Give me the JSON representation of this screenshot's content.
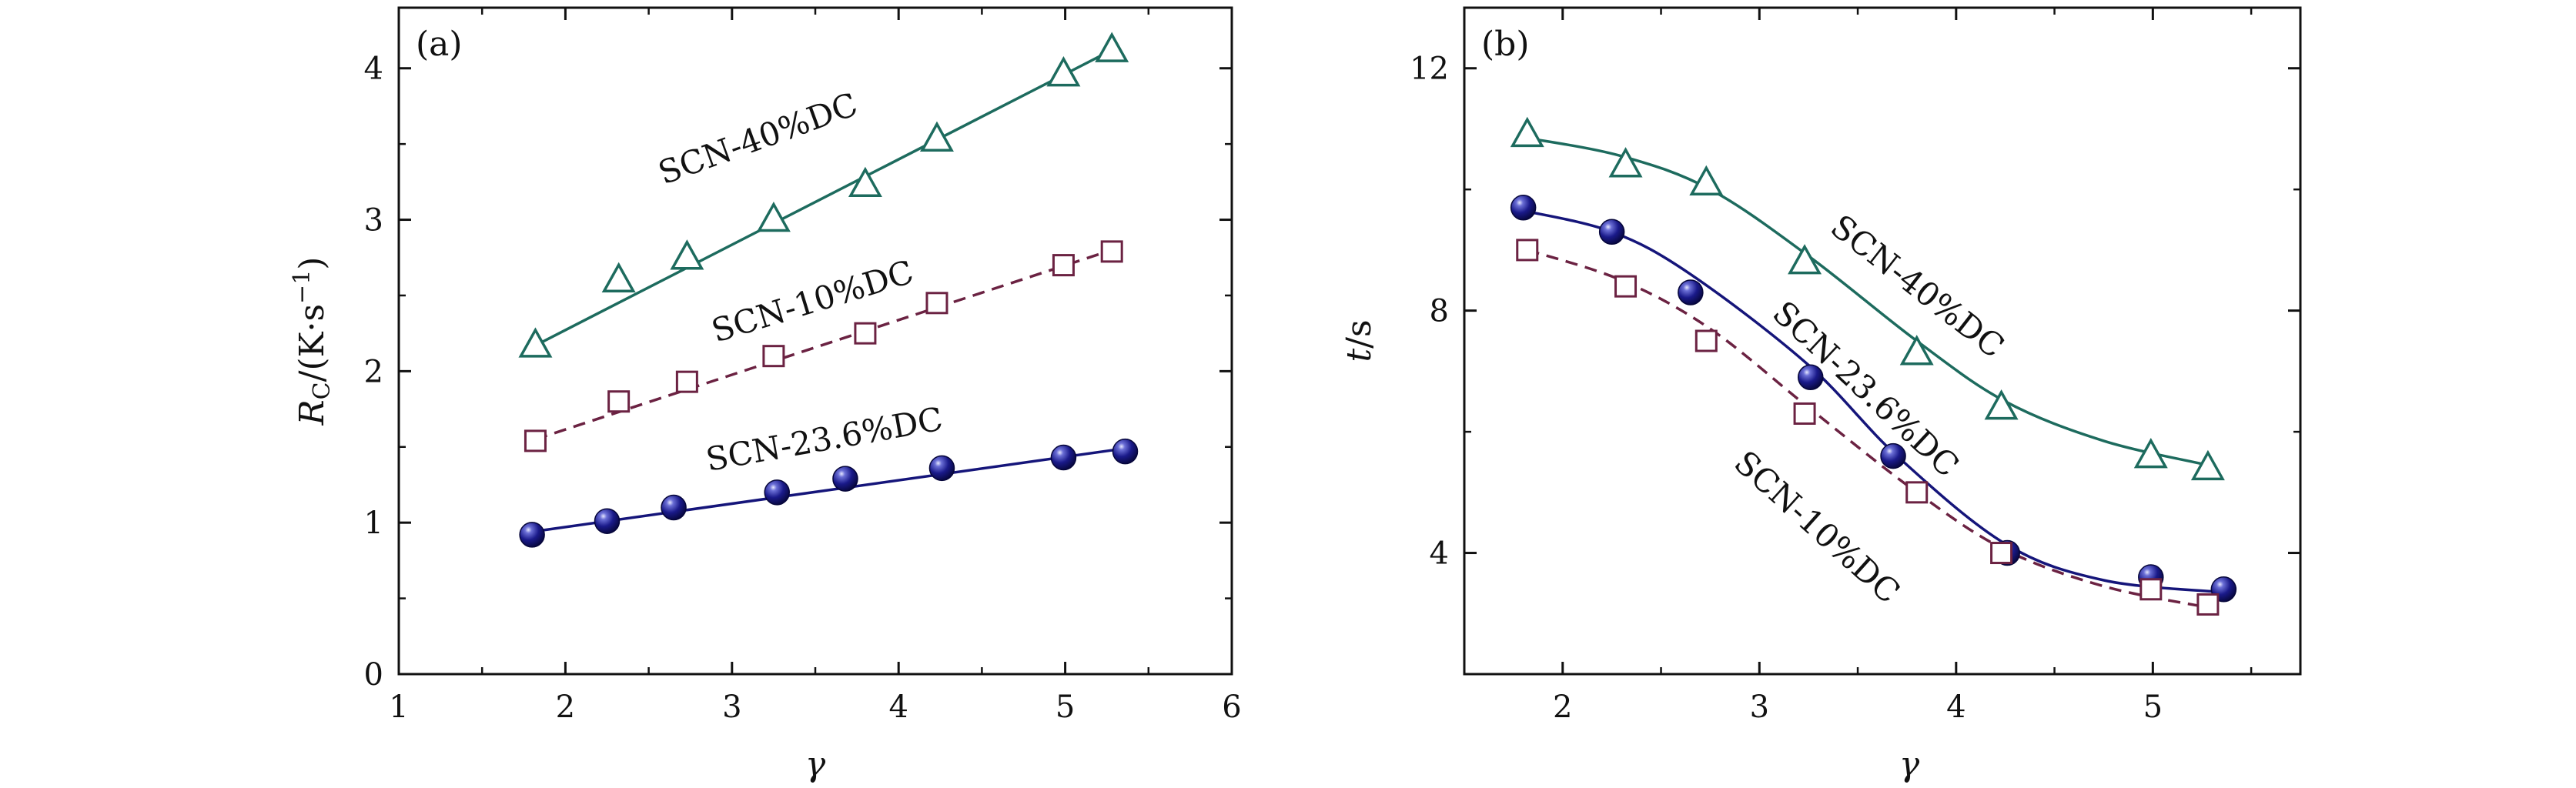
{
  "chart_data": [
    {
      "type": "scatter",
      "panel_label": "(a)",
      "xlabel": "γ",
      "ylabel": "R",
      "ylabel_sub": "C",
      "ylabel_units": "/(K·s",
      "ylabel_sup": "−1",
      "ylabel_tail": ")",
      "xlim": [
        1,
        6
      ],
      "ylim": [
        0,
        4.4
      ],
      "xticks": [
        1,
        2,
        3,
        4,
        5,
        6
      ],
      "yticks": [
        0,
        1,
        2,
        3,
        4
      ],
      "series": [
        {
          "name": "SCN-40%DC",
          "marker": "triangle",
          "color": "#1d6b5e",
          "line": "solid",
          "x": [
            1.82,
            2.32,
            2.73,
            3.25,
            3.8,
            4.23,
            4.99,
            5.28
          ],
          "y": [
            2.17,
            2.6,
            2.75,
            3.0,
            3.23,
            3.53,
            3.96,
            4.12
          ],
          "fit": [
            [
              1.82,
              2.17
            ],
            [
              5.28,
              4.12
            ]
          ]
        },
        {
          "name": "SCN-10%DC",
          "marker": "square",
          "color": "#6b2242",
          "line": "dashed",
          "x": [
            1.82,
            2.32,
            2.73,
            3.25,
            3.8,
            4.23,
            4.99,
            5.28
          ],
          "y": [
            1.54,
            1.8,
            1.93,
            2.1,
            2.25,
            2.45,
            2.7,
            2.79
          ],
          "fit": [
            [
              1.82,
              1.55
            ],
            [
              5.28,
              2.8
            ]
          ]
        },
        {
          "name": "SCN-23.6%DC",
          "marker": "circle",
          "color": "#15157a",
          "line": "solid",
          "x": [
            1.8,
            2.25,
            2.65,
            3.27,
            3.68,
            4.26,
            4.99,
            5.36
          ],
          "y": [
            0.92,
            1.01,
            1.1,
            1.2,
            1.29,
            1.36,
            1.43,
            1.47
          ],
          "fit": [
            [
              1.8,
              0.94
            ],
            [
              5.36,
              1.49
            ]
          ]
        }
      ]
    },
    {
      "type": "scatter",
      "panel_label": "(b)",
      "xlabel": "γ",
      "ylabel": "t",
      "ylabel_units": "/s",
      "xlim": [
        1.5,
        5.75
      ],
      "ylim": [
        2,
        13
      ],
      "xticks": [
        2,
        3,
        4,
        5
      ],
      "yticks": [
        4,
        8,
        12
      ],
      "series": [
        {
          "name": "SCN-40%DC",
          "marker": "triangle",
          "color": "#1d6b5e",
          "line": "solid",
          "x": [
            1.82,
            2.32,
            2.73,
            3.23,
            3.8,
            4.23,
            4.99,
            5.28
          ],
          "y": [
            10.9,
            10.4,
            10.1,
            8.8,
            7.3,
            6.4,
            5.6,
            5.4
          ],
          "fit": [
            [
              1.82,
              10.85
            ],
            [
              2.3,
              10.55
            ],
            [
              2.75,
              10.0
            ],
            [
              3.25,
              8.9
            ],
            [
              3.8,
              7.5
            ],
            [
              4.25,
              6.5
            ],
            [
              4.75,
              5.85
            ],
            [
              5.28,
              5.45
            ]
          ]
        },
        {
          "name": "SCN-23.6%DC",
          "marker": "circle",
          "color": "#15157a",
          "line": "solid",
          "x": [
            1.8,
            2.25,
            2.65,
            3.26,
            3.68,
            4.26,
            4.99,
            5.36
          ],
          "y": [
            9.7,
            9.3,
            8.3,
            6.9,
            5.6,
            4.0,
            3.6,
            3.4
          ],
          "fit": [
            [
              1.8,
              9.65
            ],
            [
              2.25,
              9.3
            ],
            [
              2.65,
              8.6
            ],
            [
              3.25,
              7.1
            ],
            [
              3.7,
              5.6
            ],
            [
              4.25,
              4.15
            ],
            [
              4.75,
              3.55
            ],
            [
              5.36,
              3.35
            ]
          ]
        },
        {
          "name": "SCN-10%DC",
          "marker": "square",
          "color": "#6b2242",
          "line": "dashed",
          "x": [
            1.82,
            2.32,
            2.73,
            3.23,
            3.8,
            4.23,
            4.99,
            5.28
          ],
          "y": [
            9.0,
            8.4,
            7.5,
            6.3,
            5.0,
            4.0,
            3.4,
            3.15
          ],
          "fit": [
            [
              1.82,
              9.0
            ],
            [
              2.3,
              8.5
            ],
            [
              2.75,
              7.7
            ],
            [
              3.25,
              6.4
            ],
            [
              3.8,
              5.0
            ],
            [
              4.25,
              4.05
            ],
            [
              4.75,
              3.45
            ],
            [
              5.28,
              3.1
            ]
          ]
        }
      ]
    }
  ]
}
